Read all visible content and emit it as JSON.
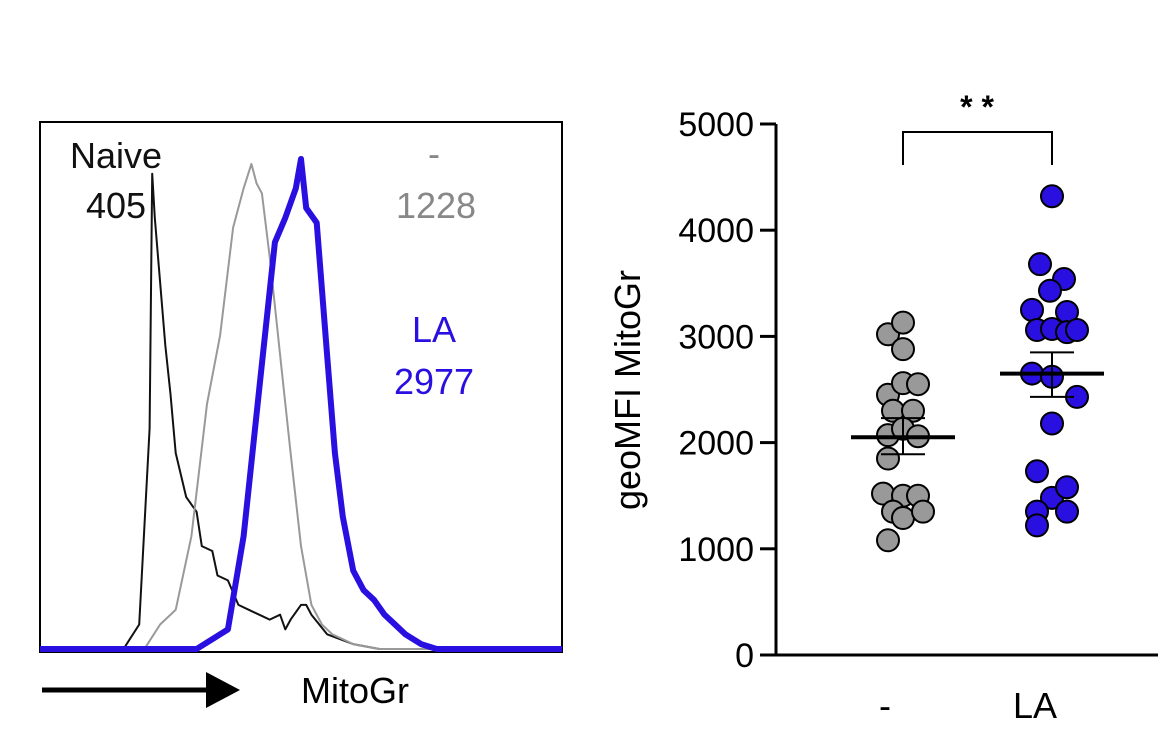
{
  "chart_data": [
    {
      "type": "line",
      "xlabel": "MitoGr",
      "series": [
        {
          "name": "Naive",
          "value_label": "405",
          "color": "#111111",
          "x": [
            0.0,
            0.16,
            0.19,
            0.21,
            0.215,
            0.22,
            0.24,
            0.25,
            0.26,
            0.28,
            0.3,
            0.31,
            0.33,
            0.34,
            0.36,
            0.38,
            0.4,
            0.42,
            0.44,
            0.46,
            0.47,
            0.48,
            0.5,
            0.51,
            0.52,
            0.55,
            0.6,
            0.65,
            0.68,
            1.0
          ],
          "y": [
            0.0,
            0.0,
            0.05,
            0.45,
            0.97,
            0.88,
            0.62,
            0.52,
            0.4,
            0.31,
            0.28,
            0.21,
            0.2,
            0.15,
            0.14,
            0.09,
            0.08,
            0.07,
            0.06,
            0.07,
            0.04,
            0.06,
            0.09,
            0.09,
            0.07,
            0.03,
            0.01,
            0.0,
            0.0,
            0.0
          ]
        },
        {
          "name": "-",
          "value_label": "1228",
          "color": "#999999",
          "x": [
            0.0,
            0.2,
            0.23,
            0.26,
            0.29,
            0.32,
            0.345,
            0.37,
            0.39,
            0.405,
            0.415,
            0.425,
            0.44,
            0.46,
            0.48,
            0.5,
            0.52,
            0.54,
            0.56,
            0.58,
            0.6,
            0.65,
            1.0
          ],
          "y": [
            0.0,
            0.0,
            0.05,
            0.08,
            0.23,
            0.5,
            0.64,
            0.86,
            0.94,
            0.99,
            0.95,
            0.93,
            0.8,
            0.6,
            0.4,
            0.21,
            0.09,
            0.05,
            0.03,
            0.02,
            0.01,
            0.0,
            0.0
          ]
        },
        {
          "name": "LA",
          "value_label": "2977",
          "color": "#2a10e0",
          "x": [
            0.0,
            0.3,
            0.33,
            0.36,
            0.39,
            0.42,
            0.45,
            0.47,
            0.49,
            0.5,
            0.51,
            0.53,
            0.55,
            0.565,
            0.58,
            0.6,
            0.62,
            0.64,
            0.66,
            0.68,
            0.7,
            0.73,
            0.76,
            1.0
          ],
          "y": [
            0.0,
            0.0,
            0.02,
            0.04,
            0.23,
            0.53,
            0.83,
            0.88,
            0.94,
            1.0,
            0.9,
            0.87,
            0.6,
            0.4,
            0.27,
            0.16,
            0.12,
            0.1,
            0.07,
            0.05,
            0.03,
            0.01,
            0.0,
            0.0
          ]
        }
      ]
    },
    {
      "type": "scatter",
      "ylabel": "geoMFI MitoGr",
      "categories": [
        "-",
        "LA"
      ],
      "ylim": [
        0,
        5000
      ],
      "yticks": [
        0,
        1000,
        2000,
        3000,
        4000,
        5000
      ],
      "significance": "* *",
      "series": [
        {
          "category": "-",
          "color": "#999999",
          "mean": 2050,
          "sem_low": 1890,
          "sem_high": 2230,
          "points": [
            [
              -0.15,
              3020
            ],
            [
              0.0,
              3130
            ],
            [
              0.0,
              2880
            ],
            [
              -0.15,
              2450
            ],
            [
              0.0,
              2560
            ],
            [
              0.15,
              2550
            ],
            [
              -0.1,
              2300
            ],
            [
              0.1,
              2300
            ],
            [
              -0.15,
              2070
            ],
            [
              0.0,
              2130
            ],
            [
              0.15,
              2060
            ],
            [
              -0.15,
              1850
            ],
            [
              -0.2,
              1520
            ],
            [
              0.0,
              1500
            ],
            [
              0.15,
              1500
            ],
            [
              -0.1,
              1350
            ],
            [
              0.0,
              1290
            ],
            [
              0.2,
              1350
            ],
            [
              -0.15,
              1080
            ]
          ]
        },
        {
          "category": "LA",
          "color": "#2a10e0",
          "mean": 2650,
          "sem_low": 2430,
          "sem_high": 2850,
          "points": [
            [
              0.0,
              4320
            ],
            [
              -0.12,
              3680
            ],
            [
              0.12,
              3540
            ],
            [
              -0.02,
              3430
            ],
            [
              -0.2,
              3250
            ],
            [
              0.15,
              3230
            ],
            [
              -0.15,
              3060
            ],
            [
              0.0,
              3070
            ],
            [
              0.15,
              3040
            ],
            [
              0.25,
              3060
            ],
            [
              -0.2,
              2650
            ],
            [
              0.0,
              2620
            ],
            [
              0.25,
              2430
            ],
            [
              0.0,
              2180
            ],
            [
              -0.15,
              1730
            ],
            [
              0.0,
              1480
            ],
            [
              0.15,
              1580
            ],
            [
              -0.15,
              1350
            ],
            [
              0.15,
              1350
            ],
            [
              -0.15,
              1220
            ]
          ]
        }
      ]
    }
  ]
}
